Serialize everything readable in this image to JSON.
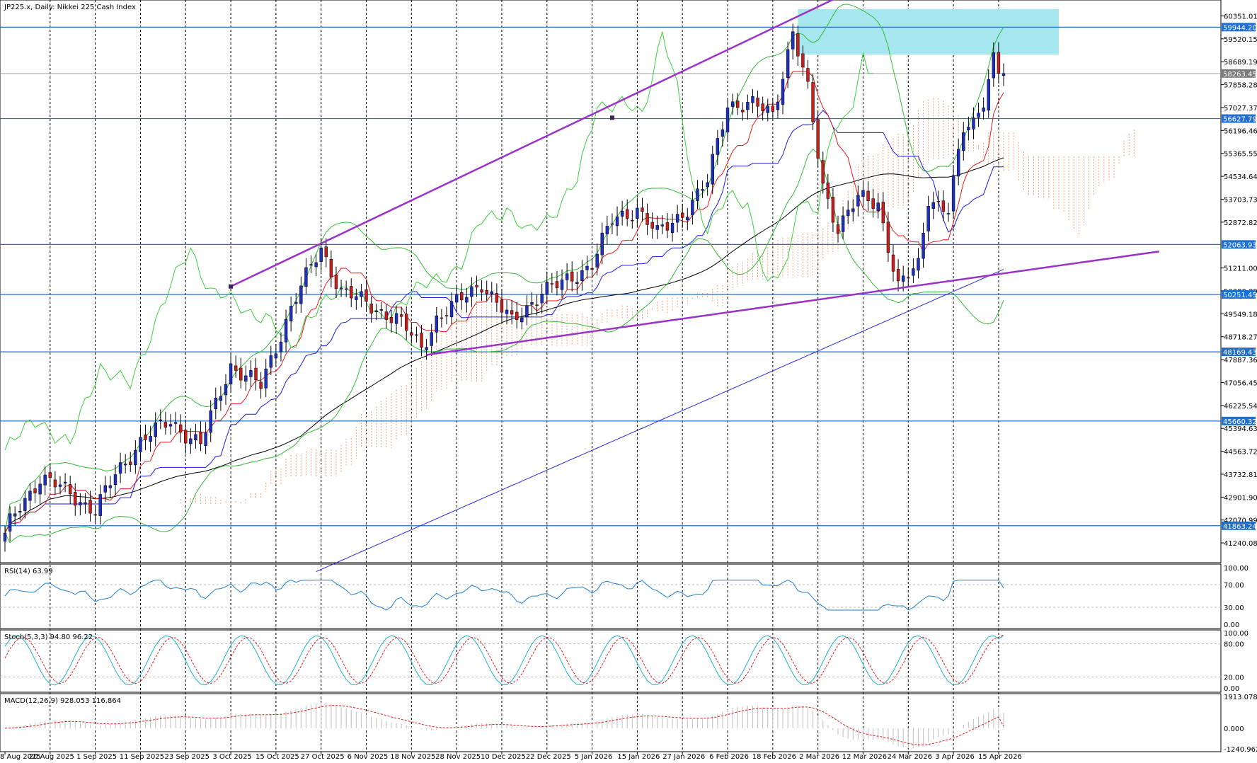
{
  "chart_data": {
    "type": "candlestick",
    "title": "JP225.x, Daily:  Nikkei 225 Cash Index",
    "colors": {
      "background": "#ffffff",
      "up_candle": "#1f2fbf",
      "down_candle": "#c81e1e",
      "wick": "#000000",
      "h_lines": "#1f6fd1",
      "trendline": "#9b32c7",
      "zone": "#a6e6ef",
      "ma_black": "#000000",
      "ma_blue_long": "#2626d9",
      "tenkan": "#e01a1a",
      "kijun": "#1a1ae0",
      "chikou": "#39d039",
      "bollinger": "#33bb33",
      "kumo": "#f0a070",
      "rsi": "#1f7fd1",
      "stoch_main": "#20b0c8",
      "stoch_signal": "#e01a1a",
      "macd_hist": "#c8c8c8",
      "macd_signal": "#e01a1a"
    },
    "main_pane": {
      "ylim": [
        40600,
        60800
      ],
      "yticks": [
        "60351.01",
        "59520.15",
        "58689.19",
        "57858.28",
        "57027.37",
        "56196.46",
        "55365.55",
        "54534.64",
        "53703.73",
        "52872.82",
        "51211.00",
        "50380.09",
        "49549.18",
        "48718.27",
        "47887.36",
        "47056.45",
        "46225.54",
        "45394.63",
        "44563.72",
        "43732.81",
        "42901.90",
        "42070.99",
        "41240.08"
      ],
      "tick_values": [
        60351.01,
        59520.15,
        58689.19,
        57858.28,
        57027.37,
        56196.46,
        55365.55,
        54534.64,
        53703.73,
        52872.82,
        51211.0,
        50380.09,
        49549.18,
        48718.27,
        47887.36,
        47056.45,
        46225.54,
        45394.63,
        44563.72,
        43732.81,
        42901.9,
        42070.99,
        41240.08
      ],
      "levels": [
        {
          "label": "59944.20",
          "value": 59944.2
        },
        {
          "label": "56627.79",
          "value": 56627.79
        },
        {
          "label": "52063.93",
          "value": 52063.93
        },
        {
          "label": "50251.45",
          "value": 50251.45
        },
        {
          "label": "48169.43",
          "value": 48169.43
        },
        {
          "label": "45660.32",
          "value": 45660.32
        },
        {
          "label": "41863.24",
          "value": 41863.24
        }
      ],
      "current_price": {
        "label": "58263.45",
        "value": 58263.45
      },
      "resistance_zone": {
        "from_index": 158,
        "to_index": 210,
        "low": 58950,
        "high": 60600
      },
      "trendlines": [
        {
          "x1_index": 45,
          "y1": 50540,
          "x2_index": 172,
          "y2": 61550
        },
        {
          "x1_index": 84,
          "y1": 48060,
          "x2_index": 230,
          "y2": 51810
        }
      ],
      "trend_points": [
        {
          "index": 45,
          "value": 50540
        },
        {
          "index": 121,
          "value": 56660
        }
      ]
    },
    "x": {
      "count": 200,
      "dates": [
        "8 Aug 2025",
        "20 Aug 2025",
        "1 Sep 2025",
        "11 Sep 2025",
        "23 Sep 2025",
        "3 Oct 2025",
        "15 Oct 2025",
        "27 Oct 2025",
        "6 Nov 2025",
        "18 Nov 2025",
        "28 Nov 2025",
        "10 Dec 2025",
        "22 Dec 2025",
        "5 Jan 2026",
        "15 Jan 2026",
        "27 Jan 2026",
        "6 Feb 2026",
        "18 Feb 2026",
        "2 Mar 2026",
        "12 Mar 2026",
        "24 Mar 2026",
        "3 Apr 2026",
        "15 Apr 2026"
      ],
      "date_indices": [
        0,
        9,
        18,
        27,
        36,
        45,
        54,
        63,
        72,
        81,
        90,
        99,
        108,
        117,
        126,
        135,
        144,
        153,
        162,
        171,
        180,
        189,
        198
      ]
    },
    "ohlc_anchors": [
      [
        0,
        41600
      ],
      [
        3,
        42600
      ],
      [
        7,
        43600
      ],
      [
        13,
        43050
      ],
      [
        18,
        42400
      ],
      [
        22,
        43700
      ],
      [
        27,
        44950
      ],
      [
        33,
        45650
      ],
      [
        39,
        44800
      ],
      [
        45,
        47700
      ],
      [
        51,
        46900
      ],
      [
        57,
        49800
      ],
      [
        63,
        51900
      ],
      [
        67,
        50400
      ],
      [
        72,
        49900
      ],
      [
        78,
        49400
      ],
      [
        83,
        48300
      ],
      [
        86,
        49400
      ],
      [
        90,
        49900
      ],
      [
        95,
        50700
      ],
      [
        101,
        49200
      ],
      [
        107,
        50400
      ],
      [
        111,
        50600
      ],
      [
        117,
        51400
      ],
      [
        121,
        52900
      ],
      [
        126,
        53400
      ],
      [
        130,
        52400
      ],
      [
        136,
        53400
      ],
      [
        140,
        54300
      ],
      [
        144,
        57200
      ],
      [
        149,
        57100
      ],
      [
        153,
        56800
      ],
      [
        157,
        59800
      ],
      [
        160,
        57600
      ],
      [
        163,
        54200
      ],
      [
        166,
        52700
      ],
      [
        170,
        53700
      ],
      [
        174,
        53600
      ],
      [
        178,
        50500
      ],
      [
        182,
        51300
      ],
      [
        184,
        53800
      ],
      [
        188,
        53300
      ],
      [
        191,
        56200
      ],
      [
        193,
        56500
      ],
      [
        195,
        57400
      ],
      [
        197,
        58850
      ],
      [
        198,
        58263
      ]
    ],
    "indicators": {
      "rsi": {
        "label": "RSI(14) 63.99",
        "value": 63.99,
        "ylim": [
          0,
          100
        ],
        "yticks": [
          "100.00",
          "70.00",
          "30.00",
          "0.00"
        ],
        "tick_values": [
          100,
          70,
          30,
          0
        ],
        "levels": [
          70,
          30
        ]
      },
      "stoch": {
        "label": "Stoch(5,3,3) 94.80 96.22",
        "main": 94.8,
        "signal": 96.22,
        "ylim": [
          0,
          100
        ],
        "yticks": [
          "100.00",
          "80.00",
          "20.00",
          "0.00"
        ],
        "tick_values": [
          100,
          80,
          20,
          0
        ],
        "levels": [
          80,
          20
        ]
      },
      "macd": {
        "label": "MACD(12,26,9) 928.053 116.864",
        "macd": 928.053,
        "signal": 116.864,
        "ylim": [
          -1240.962,
          1913.078
        ],
        "yticks": [
          "1913.078",
          "0.000",
          "-1240.962"
        ],
        "tick_values": [
          1913.078,
          0,
          -1240.962
        ]
      }
    }
  }
}
